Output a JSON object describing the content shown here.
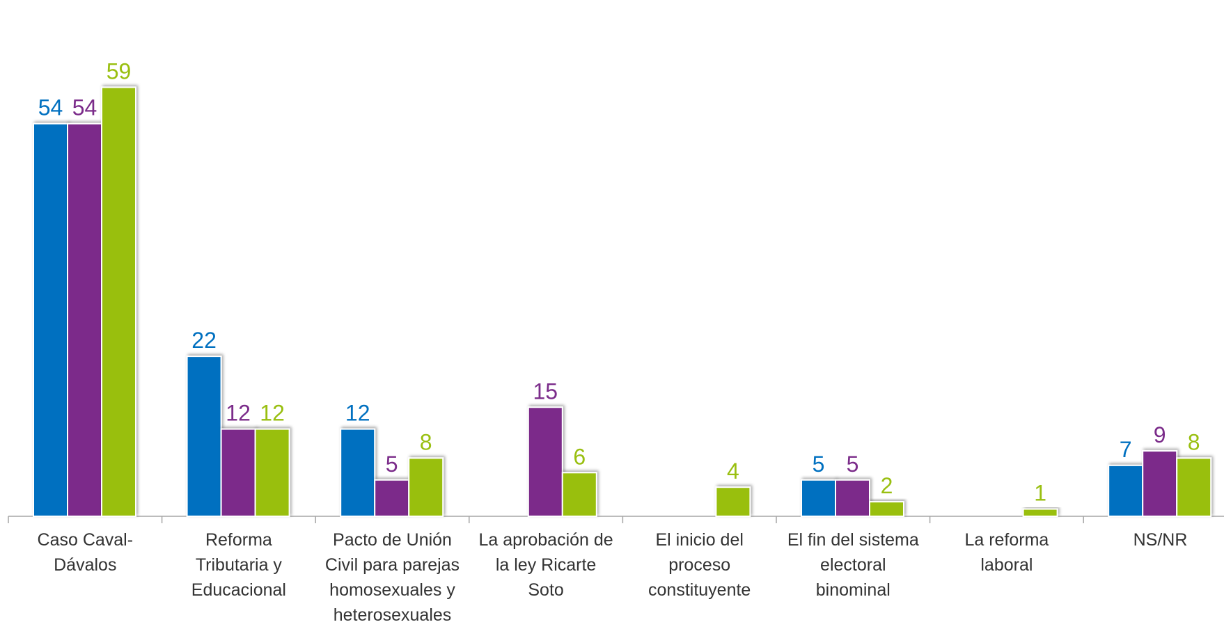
{
  "chart_data": {
    "type": "bar",
    "categories": [
      "Caso Caval-\nDávalos",
      "Reforma\nTributaria y\nEducacional",
      "Pacto de Unión\nCivil para parejas\nhomosexuales y\nheterosexuales",
      "La aprobación de\nla ley Ricarte Soto",
      "El inicio del\nproceso\nconstituyente",
      "El fin del sistema\nelectoral\nbinominal",
      "La reforma laboral",
      "NS/NR"
    ],
    "series": [
      {
        "values": [
          54,
          22,
          12,
          null,
          null,
          5,
          null,
          7
        ]
      },
      {
        "values": [
          54,
          12,
          5,
          15,
          null,
          5,
          null,
          9
        ]
      },
      {
        "values": [
          59,
          12,
          8,
          6,
          4,
          2,
          1,
          8
        ]
      }
    ],
    "ylim": [
      0,
      60
    ],
    "grid": false,
    "legend": "none",
    "colors": [
      "#0070c0",
      "#7b2c8a",
      "#99bf10"
    ]
  }
}
